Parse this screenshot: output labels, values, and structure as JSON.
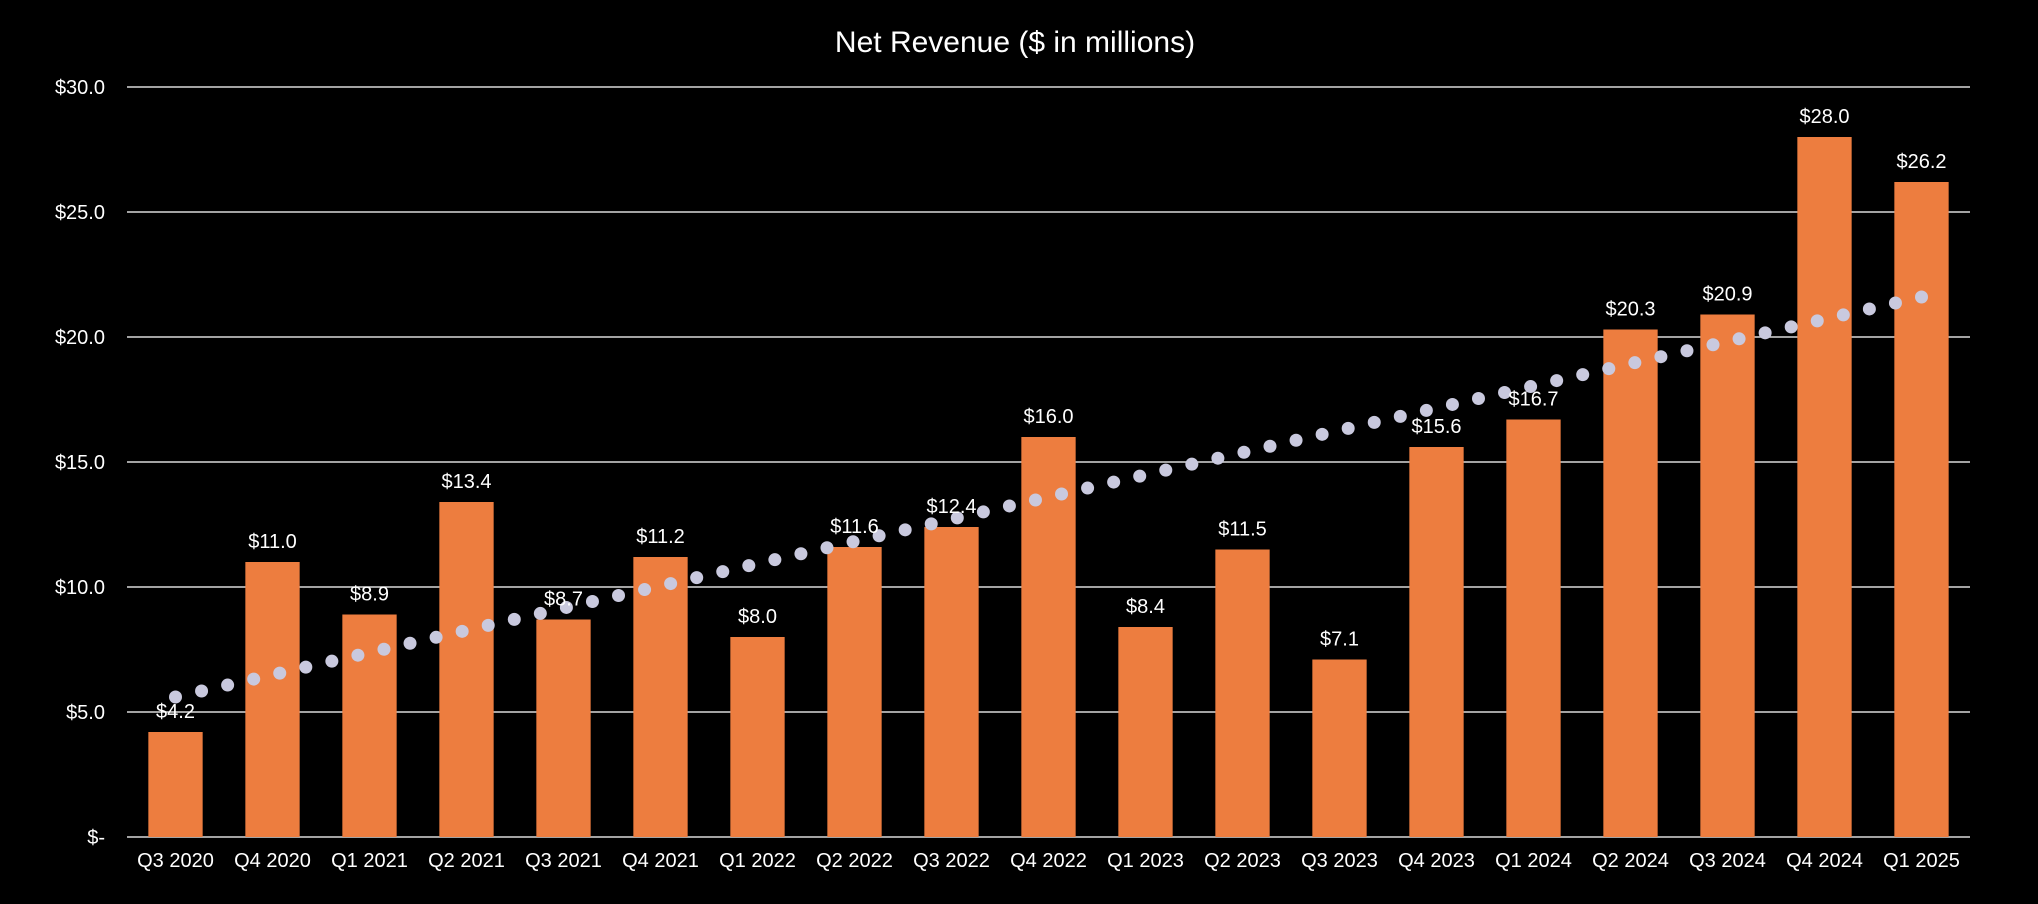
{
  "chart_data": {
    "type": "bar",
    "title": "Net Revenue ($ in millions)",
    "categories": [
      "Q3 2020",
      "Q4 2020",
      "Q1 2021",
      "Q2 2021",
      "Q3 2021",
      "Q4 2021",
      "Q1 2022",
      "Q2 2022",
      "Q3 2022",
      "Q4 2022",
      "Q1 2023",
      "Q2 2023",
      "Q3 2023",
      "Q4 2023",
      "Q1 2024",
      "Q2 2024",
      "Q3 2024",
      "Q4 2024",
      "Q1 2025"
    ],
    "values": [
      4.2,
      11.0,
      8.9,
      13.4,
      8.7,
      11.2,
      8.0,
      11.6,
      12.4,
      16.0,
      8.4,
      11.5,
      7.1,
      15.6,
      16.7,
      20.3,
      20.9,
      28.0,
      26.2
    ],
    "data_labels": [
      "$4.2",
      "$11.0",
      "$8.9",
      "$13.4",
      "$8.7",
      "$11.2",
      "$8.0",
      "$11.6",
      "$12.4",
      "$16.0",
      "$8.4",
      "$11.5",
      "$7.1",
      "$15.6",
      "$16.7",
      "$20.3",
      "$20.9",
      "$28.0",
      "$26.2"
    ],
    "trendline": {
      "type": "linear",
      "style": "dotted",
      "start_value": 5.6,
      "end_value": 21.6
    },
    "ylim": [
      0,
      30
    ],
    "yticks": [
      0,
      5,
      10,
      15,
      20,
      25,
      30
    ],
    "ytick_labels": [
      "$-",
      "$5.0",
      "$10.0",
      "$15.0",
      "$20.0",
      "$25.0",
      "$30.0"
    ],
    "xlabel": "",
    "ylabel": "",
    "grid": true,
    "legend": "none",
    "colors": {
      "bar": "#ed7d3f",
      "trend": "#c9c9de",
      "background": "#000000",
      "text": "#ffffff",
      "grid": "#d9d9d9"
    }
  }
}
